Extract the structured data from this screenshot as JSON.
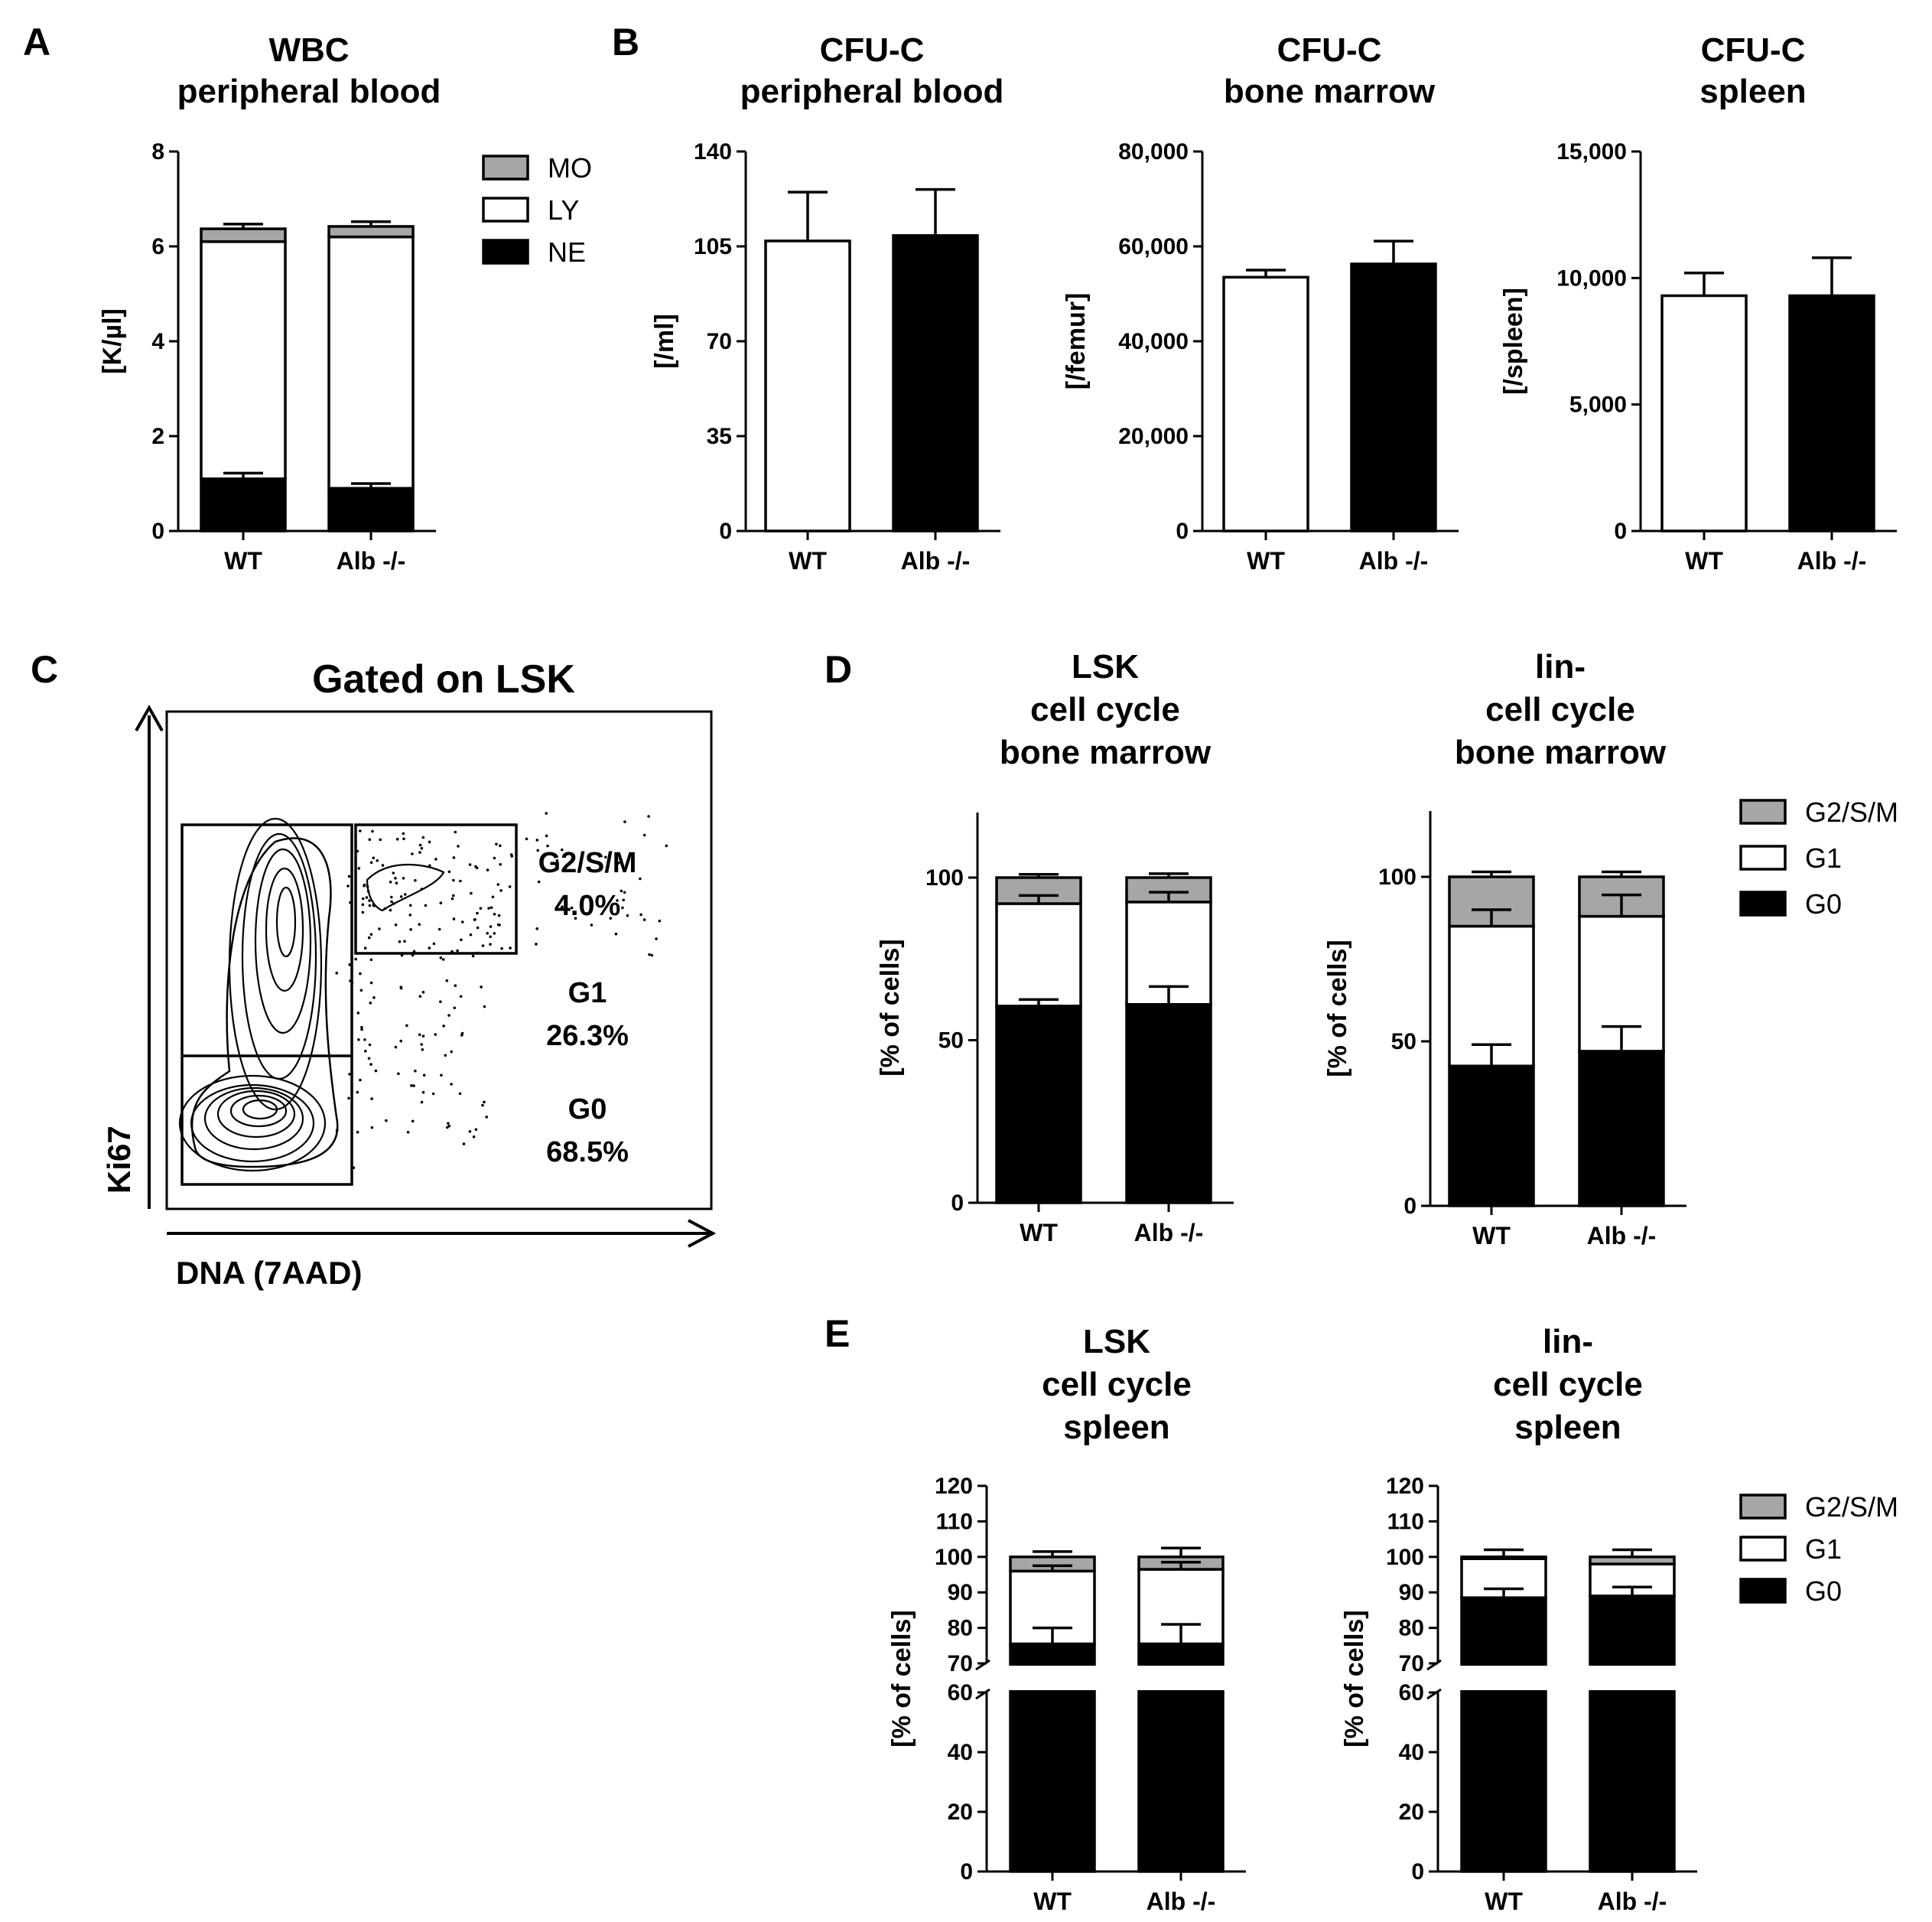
{
  "panel_labels": [
    "A",
    "B",
    "C",
    "D",
    "E"
  ],
  "colors": {
    "G2": "#a6a6a6",
    "G1": "#ffffff",
    "G0": "#000000",
    "WT": "#ffffff",
    "KO": "#000000"
  },
  "chart_data": [
    {
      "id": "A",
      "type": "bar",
      "stacked": true,
      "title": [
        "WBC",
        "peripheral blood"
      ],
      "ylabel": "[K/µl]",
      "ylim": [
        0,
        8
      ],
      "yticks": [
        {
          "v": 0,
          "t": "0"
        },
        {
          "v": 2,
          "t": "2"
        },
        {
          "v": 4,
          "t": "4"
        },
        {
          "v": 6,
          "t": "6"
        },
        {
          "v": 8,
          "t": "8"
        }
      ],
      "categories": [
        "WT",
        "Alb -/-"
      ],
      "series": [
        {
          "name": "NE",
          "color": "#000000",
          "values": [
            1.1,
            0.9
          ],
          "err": [
            0.12,
            0.1
          ]
        },
        {
          "name": "LY",
          "color": "#ffffff",
          "values": [
            5.0,
            5.3
          ],
          "err": [
            0,
            0
          ]
        },
        {
          "name": "MO",
          "color": "#a6a6a6",
          "values": [
            0.27,
            0.22
          ],
          "err": [
            0.1,
            0.1
          ]
        }
      ],
      "legend": [
        "MO",
        "LY",
        "NE"
      ]
    },
    {
      "id": "B1",
      "type": "bar",
      "title": [
        "CFU-C",
        "peripheral blood"
      ],
      "ylabel": "[/ml]",
      "ylim": [
        0,
        140
      ],
      "yticks": [
        {
          "v": 0,
          "t": "0"
        },
        {
          "v": 35,
          "t": "35"
        },
        {
          "v": 70,
          "t": "70"
        },
        {
          "v": 105,
          "t": "105"
        },
        {
          "v": 140,
          "t": "140"
        }
      ],
      "categories": [
        "WT",
        "Alb -/-"
      ],
      "values": [
        107,
        109
      ],
      "err": [
        18,
        17
      ],
      "colors": [
        "#ffffff",
        "#000000"
      ]
    },
    {
      "id": "B2",
      "type": "bar",
      "title": [
        "CFU-C",
        "bone marrow"
      ],
      "ylabel": "[/femur]",
      "ylim": [
        0,
        80000
      ],
      "yticks": [
        {
          "v": 0,
          "t": "0"
        },
        {
          "v": 20000,
          "t": "20,000"
        },
        {
          "v": 40000,
          "t": "40,000"
        },
        {
          "v": 60000,
          "t": "60,000"
        },
        {
          "v": 80000,
          "t": "80,000"
        }
      ],
      "categories": [
        "WT",
        "Alb -/-"
      ],
      "values": [
        53500,
        56300
      ],
      "err": [
        1500,
        4800
      ],
      "colors": [
        "#ffffff",
        "#000000"
      ]
    },
    {
      "id": "B3",
      "type": "bar",
      "title": [
        "CFU-C",
        "spleen"
      ],
      "ylabel": "[/spleen]",
      "ylim": [
        0,
        15000
      ],
      "yticks": [
        {
          "v": 0,
          "t": "0"
        },
        {
          "v": 5000,
          "t": "5,000"
        },
        {
          "v": 10000,
          "t": "10,000"
        },
        {
          "v": 15000,
          "t": "15,000"
        }
      ],
      "categories": [
        "WT",
        "Alb -/-"
      ],
      "values": [
        9300,
        9300
      ],
      "err": [
        900,
        1500
      ],
      "colors": [
        "#ffffff",
        "#000000"
      ]
    },
    {
      "id": "D1",
      "type": "bar",
      "stacked": true,
      "title": [
        "LSK",
        "cell cycle",
        "bone marrow"
      ],
      "ylabel": "[% of cells]",
      "ylim": [
        0,
        120
      ],
      "yticks": [
        {
          "v": 0,
          "t": "0"
        },
        {
          "v": 50,
          "t": "50"
        },
        {
          "v": 100,
          "t": "100"
        }
      ],
      "categories": [
        "WT",
        "Alb -/-"
      ],
      "series": [
        {
          "name": "G0",
          "color": "#000000",
          "values": [
            60.5,
            61
          ],
          "err": [
            2,
            5.5
          ]
        },
        {
          "name": "G1",
          "color": "#ffffff",
          "values": [
            31.5,
            31.5
          ],
          "err": [
            2.5,
            3
          ]
        },
        {
          "name": "G2/S/M",
          "color": "#a6a6a6",
          "values": [
            8,
            7.5
          ],
          "err": [
            1,
            1.2
          ]
        }
      ]
    },
    {
      "id": "D2",
      "type": "bar",
      "stacked": true,
      "title": [
        "lin-",
        "cell cycle",
        "bone marrow"
      ],
      "ylabel": "[% of cells]",
      "ylim": [
        0,
        120
      ],
      "yticks": [
        {
          "v": 0,
          "t": "0"
        },
        {
          "v": 50,
          "t": "50"
        },
        {
          "v": 100,
          "t": "100"
        }
      ],
      "categories": [
        "WT",
        "Alb -/-"
      ],
      "series": [
        {
          "name": "G0",
          "color": "#000000",
          "values": [
            42.5,
            47
          ],
          "err": [
            6.5,
            7.5
          ]
        },
        {
          "name": "G1",
          "color": "#ffffff",
          "values": [
            42.5,
            41
          ],
          "err": [
            5,
            6.5
          ]
        },
        {
          "name": "G2/S/M",
          "color": "#a6a6a6",
          "values": [
            15,
            12
          ],
          "err": [
            1.5,
            1.5
          ]
        }
      ],
      "legend": [
        "G2/S/M",
        "G1",
        "G0"
      ]
    },
    {
      "id": "E1",
      "type": "bar",
      "stacked": true,
      "axis_break": [
        60,
        70
      ],
      "title": [
        "LSK",
        "cell cycle",
        "spleen"
      ],
      "ylabel": "[% of cells]",
      "ylim": [
        0,
        120
      ],
      "yticks_upper": [
        {
          "v": 70,
          "t": "70"
        },
        {
          "v": 80,
          "t": "80"
        },
        {
          "v": 90,
          "t": "90"
        },
        {
          "v": 100,
          "t": "100"
        },
        {
          "v": 110,
          "t": "110"
        },
        {
          "v": 120,
          "t": "120"
        }
      ],
      "yticks_lower": [
        {
          "v": 0,
          "t": "0"
        },
        {
          "v": 20,
          "t": "20"
        },
        {
          "v": 40,
          "t": "40"
        },
        {
          "v": 60,
          "t": "60"
        }
      ],
      "categories": [
        "WT",
        "Alb -/-"
      ],
      "series": [
        {
          "name": "G0",
          "color": "#000000",
          "values": [
            75.5,
            75.5
          ],
          "err": [
            4.5,
            5.5
          ]
        },
        {
          "name": "G1",
          "color": "#ffffff",
          "values": [
            20.5,
            21
          ],
          "err": [
            1.5,
            2
          ]
        },
        {
          "name": "G2/S/M",
          "color": "#a6a6a6",
          "values": [
            4,
            3.5
          ],
          "err": [
            1.5,
            2.5
          ]
        }
      ]
    },
    {
      "id": "E2",
      "type": "bar",
      "stacked": true,
      "axis_break": [
        60,
        70
      ],
      "title": [
        "lin-",
        "cell cycle",
        "spleen"
      ],
      "ylabel": "[% of cells]",
      "ylim": [
        0,
        120
      ],
      "yticks_upper": [
        {
          "v": 70,
          "t": "70"
        },
        {
          "v": 80,
          "t": "80"
        },
        {
          "v": 90,
          "t": "90"
        },
        {
          "v": 100,
          "t": "100"
        },
        {
          "v": 110,
          "t": "110"
        },
        {
          "v": 120,
          "t": "120"
        }
      ],
      "yticks_lower": [
        {
          "v": 0,
          "t": "0"
        },
        {
          "v": 20,
          "t": "20"
        },
        {
          "v": 40,
          "t": "40"
        },
        {
          "v": 60,
          "t": "60"
        }
      ],
      "categories": [
        "WT",
        "Alb -/-"
      ],
      "series": [
        {
          "name": "G0",
          "color": "#000000",
          "values": [
            88.5,
            89
          ],
          "err": [
            2.5,
            2.5
          ]
        },
        {
          "name": "G1",
          "color": "#ffffff",
          "values": [
            11,
            9
          ],
          "err": [
            0,
            0
          ]
        },
        {
          "name": "G2/S/M",
          "color": "#a6a6a6",
          "values": [
            0.5,
            2
          ],
          "err": [
            2,
            2
          ]
        }
      ],
      "legend": [
        "G2/S/M",
        "G1",
        "G0"
      ]
    }
  ],
  "flow": {
    "title": "Gated on LSK",
    "xlabel": "DNA (7AAD)",
    "ylabel": "Ki67",
    "gates": [
      {
        "name": "G2/S/M",
        "pct": "4.0%"
      },
      {
        "name": "G1",
        "pct": "26.3%"
      },
      {
        "name": "G0",
        "pct": "68.5%"
      }
    ]
  }
}
